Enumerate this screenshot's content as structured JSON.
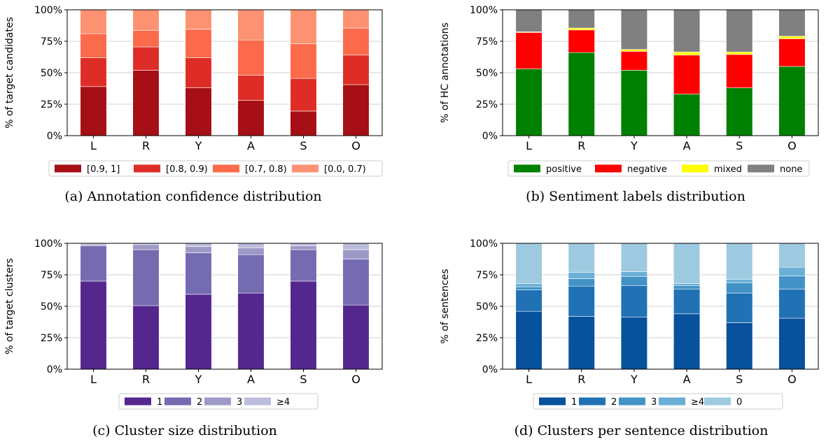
{
  "chart_data": [
    {
      "type": "bar",
      "stacked": true,
      "categories": [
        "L",
        "R",
        "Y",
        "A",
        "S",
        "O"
      ],
      "ylabel": "% of target candidates",
      "yticks": [
        "0%",
        "25%",
        "50%",
        "75%",
        "100%"
      ],
      "ylim": [
        0,
        100
      ],
      "grid": true,
      "legend_position": "bottom",
      "caption": "(a) Annotation confidence distribution",
      "series": [
        {
          "name": "[0.9, 1]",
          "color": "#a50f15",
          "values": [
            39,
            52,
            38,
            28,
            19.5,
            40.5
          ]
        },
        {
          "name": "[0.8, 0.9)",
          "color": "#de2d26",
          "values": [
            23,
            18.5,
            24,
            20,
            26,
            23.5
          ]
        },
        {
          "name": "[0.7, 0.8)",
          "color": "#fb6a4a",
          "values": [
            19,
            13,
            22.5,
            28,
            27.5,
            21.5
          ]
        },
        {
          "name": "[0.0, 0.7)",
          "color": "#fc9272",
          "values": [
            19,
            16.5,
            15.5,
            24,
            27,
            14.5
          ]
        }
      ]
    },
    {
      "type": "bar",
      "stacked": true,
      "categories": [
        "L",
        "R",
        "Y",
        "A",
        "S",
        "O"
      ],
      "ylabel": "% of HC annotations",
      "yticks": [
        "0%",
        "25%",
        "50%",
        "75%",
        "100%"
      ],
      "ylim": [
        0,
        100
      ],
      "grid": true,
      "legend_position": "bottom",
      "caption": "(b) Sentiment labels distribution",
      "series": [
        {
          "name": "positive",
          "color": "#008000",
          "values": [
            53,
            66,
            52,
            33,
            38,
            55
          ]
        },
        {
          "name": "negative",
          "color": "#ff0000",
          "values": [
            29,
            18,
            15,
            31,
            26.5,
            22
          ]
        },
        {
          "name": "mixed",
          "color": "#ffff00",
          "values": [
            0.5,
            1.5,
            1.5,
            2.5,
            2,
            2
          ]
        },
        {
          "name": "none",
          "color": "#808080",
          "values": [
            17.5,
            14.5,
            31.5,
            33.5,
            33.5,
            21
          ]
        }
      ]
    },
    {
      "type": "bar",
      "stacked": true,
      "categories": [
        "L",
        "R",
        "Y",
        "A",
        "S",
        "O"
      ],
      "ylabel": "% of target clusters",
      "yticks": [
        "0%",
        "25%",
        "50%",
        "75%",
        "100%"
      ],
      "ylim": [
        0,
        100
      ],
      "grid": true,
      "legend_position": "bottom",
      "caption": "(c) Cluster size distribution",
      "series": [
        {
          "name": "1",
          "color": "#54278f",
          "values": [
            70,
            50.5,
            59.5,
            60.5,
            70,
            51
          ]
        },
        {
          "name": "2",
          "color": "#756bb1",
          "values": [
            28,
            44.5,
            33,
            30.5,
            25,
            36.5
          ]
        },
        {
          "name": "3",
          "color": "#9e9ac8",
          "values": [
            1,
            4,
            5,
            5.5,
            3,
            7.5
          ]
        },
        {
          "name": "≥4",
          "color": "#bcbddc",
          "values": [
            1,
            1,
            2.5,
            3.5,
            2,
            5
          ]
        }
      ]
    },
    {
      "type": "bar",
      "stacked": true,
      "categories": [
        "L",
        "R",
        "Y",
        "A",
        "S",
        "O"
      ],
      "ylabel": "% of sentences",
      "yticks": [
        "0%",
        "25%",
        "50%",
        "75%",
        "100%"
      ],
      "ylim": [
        0,
        100
      ],
      "grid": true,
      "legend_position": "bottom",
      "caption": "(d) Clusters per sentence distribution",
      "series": [
        {
          "name": "1",
          "color": "#08519c",
          "values": [
            46,
            42,
            41.5,
            44,
            37,
            40.5
          ]
        },
        {
          "name": "2",
          "color": "#2171b5",
          "values": [
            17,
            24,
            25,
            19.5,
            23.5,
            23
          ]
        },
        {
          "name": "3",
          "color": "#4292c6",
          "values": [
            2.5,
            6,
            7,
            3,
            8,
            10.5
          ]
        },
        {
          "name": "≥4",
          "color": "#6baed6",
          "values": [
            2.5,
            5,
            4,
            1.5,
            3,
            7
          ]
        },
        {
          "name": "0",
          "color": "#9ecae1",
          "values": [
            32,
            23,
            22.5,
            32,
            28.5,
            19
          ]
        }
      ]
    }
  ]
}
